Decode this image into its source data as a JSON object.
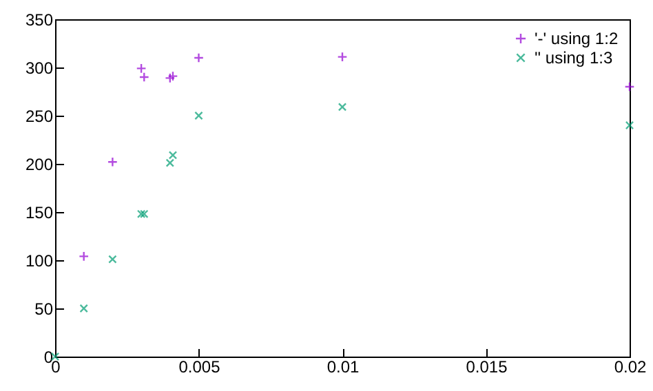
{
  "chart_data": {
    "type": "scatter",
    "xlim": [
      0,
      0.02
    ],
    "ylim": [
      0,
      350
    ],
    "xticks": [
      0,
      0.005,
      0.01,
      0.015,
      0.02
    ],
    "yticks": [
      0,
      50,
      100,
      150,
      200,
      250,
      300,
      350
    ],
    "legend": "top right",
    "grid": false,
    "series": [
      {
        "name": "'-' using 1:2",
        "color": "#9400d3",
        "marker": "plus",
        "x": [
          0.001,
          0.002,
          0.003,
          0.0031,
          0.004,
          0.0041,
          0.005,
          0.01,
          0.02
        ],
        "values": [
          104,
          202,
          299,
          290,
          289,
          291,
          310,
          311,
          280
        ]
      },
      {
        "name": "'' using 1:3",
        "color": "#009e73",
        "marker": "cross",
        "x": [
          0,
          0.001,
          0.002,
          0.003,
          0.0031,
          0.004,
          0.0041,
          0.005,
          0.01,
          0.02
        ],
        "values": [
          0,
          50,
          101,
          148,
          148,
          201,
          209,
          250,
          259,
          240
        ]
      }
    ]
  }
}
